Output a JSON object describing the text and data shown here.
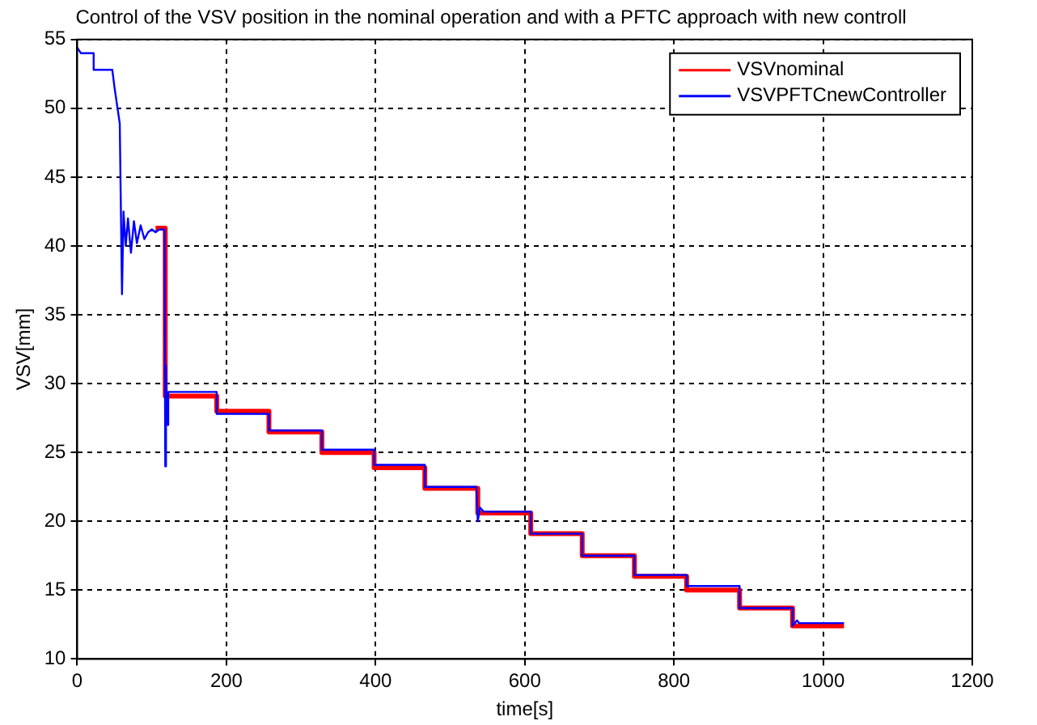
{
  "chart_data": {
    "type": "line",
    "title": "Control of the VSV position in the nominal operation and with a PFTC approach with new controll",
    "xlabel": "time[s]",
    "ylabel": "VSV[mm]",
    "xlim": [
      0,
      1200
    ],
    "xticks": [
      0,
      200,
      400,
      600,
      800,
      1000,
      1200
    ],
    "ylim": [
      10,
      55
    ],
    "yticks": [
      10,
      15,
      20,
      25,
      30,
      35,
      40,
      45,
      50,
      55
    ],
    "grid": true,
    "legend": "top right",
    "line_style": "solid",
    "marker": "none",
    "series": [
      {
        "name": "VSVnominal",
        "color": "#ff0000",
        "x": [
          105,
          118,
          118,
          187,
          187,
          257,
          257,
          328,
          328,
          398,
          398,
          466,
          466,
          537,
          537,
          608,
          608,
          677,
          677,
          747,
          747,
          817,
          817,
          888,
          888,
          959,
          959,
          1028
        ],
        "values": [
          41.3,
          41.3,
          29.1,
          29.1,
          28,
          28,
          26.5,
          26.5,
          25.0,
          25.0,
          23.9,
          23.9,
          22.4,
          22.4,
          20.6,
          20.6,
          19.1,
          19.1,
          17.5,
          17.5,
          16.0,
          16.0,
          15.0,
          15.0,
          13.7,
          13.7,
          12.4,
          12.4
        ]
      },
      {
        "name": "VSVPFTCnewController",
        "color": "#0000ff",
        "x": [
          0,
          5,
          22,
          22,
          47,
          50,
          57,
          60,
          62,
          65,
          68,
          72,
          76,
          80,
          85,
          90,
          95,
          100,
          105,
          110,
          115,
          117,
          118,
          119,
          120,
          122,
          125,
          187,
          187,
          257,
          257,
          328,
          328,
          398,
          398,
          466,
          466,
          535,
          537,
          540,
          545,
          608,
          608,
          677,
          677,
          747,
          747,
          817,
          817,
          888,
          888,
          959,
          959,
          965,
          968,
          1028
        ],
        "values": [
          54.4,
          54.0,
          54.0,
          52.8,
          52.8,
          51.5,
          48.9,
          36.5,
          42.5,
          40,
          42,
          39.5,
          41.8,
          40.2,
          41.5,
          40.5,
          41,
          41.2,
          41,
          41.2,
          41.2,
          41.2,
          24.0,
          31.3,
          27,
          29.4,
          29.4,
          29.4,
          27.8,
          27.8,
          26.6,
          26.6,
          25.2,
          25.2,
          24.1,
          24.1,
          22.5,
          22.5,
          20.0,
          21,
          20.7,
          20.7,
          19.1,
          19.1,
          17.5,
          17.5,
          16.1,
          16.1,
          15.3,
          15.3,
          13.7,
          13.7,
          12.4,
          12.8,
          12.6,
          12.6
        ]
      }
    ]
  }
}
